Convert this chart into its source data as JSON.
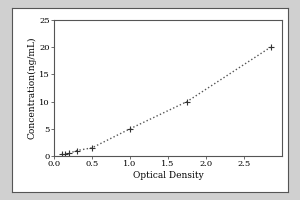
{
  "x_data": [
    0.1,
    0.15,
    0.2,
    0.3,
    0.5,
    1.0,
    1.75,
    2.85
  ],
  "y_data": [
    0.3,
    0.4,
    0.5,
    1.0,
    1.5,
    5.0,
    10.0,
    20.0
  ],
  "xlabel": "Optical Density",
  "ylabel": "Concentration(ng/mL)",
  "xlim": [
    0,
    3.0
  ],
  "ylim": [
    0,
    25
  ],
  "xticks": [
    0,
    0.5,
    1.0,
    1.5,
    2.0,
    2.5
  ],
  "yticks": [
    0,
    5,
    10,
    15,
    20,
    25
  ],
  "line_color": "#555555",
  "marker_color": "#333333",
  "bg_color": "#ffffff",
  "outer_bg": "#e8e8e8",
  "font_size_label": 6.5,
  "font_size_tick": 6
}
